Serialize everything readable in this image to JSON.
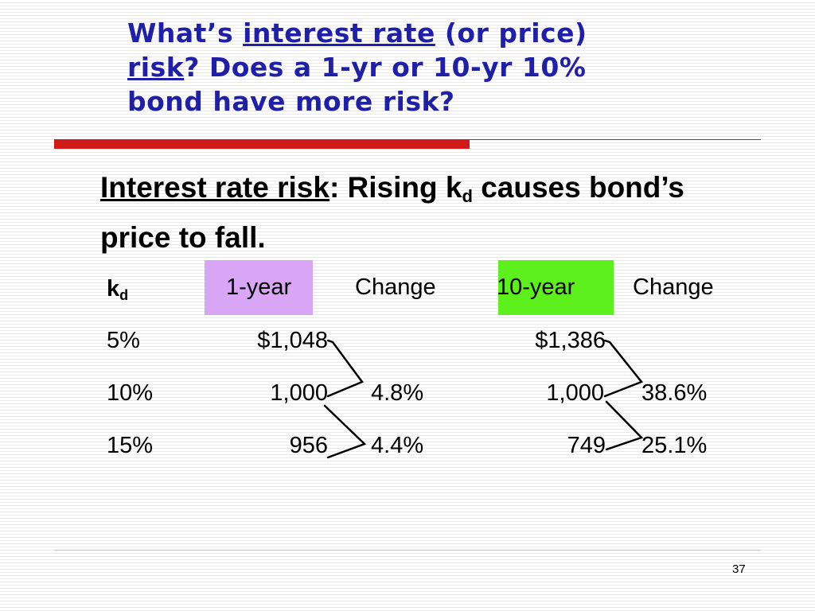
{
  "title": {
    "part1": "What’s ",
    "underlined1": "interest rate",
    "part2": " (or price)",
    "underlined2": "risk",
    "part3": "?  Does a 1-yr or 10-yr 10%",
    "part4": "bond have more risk?"
  },
  "heading": {
    "term": "Interest rate risk",
    "colon": ":",
    "text_before_sub": "  Rising k",
    "sub": "d",
    "text_after_sub": " causes bond’s",
    "line2": "price to fall."
  },
  "table": {
    "headers": {
      "kd_main": "k",
      "kd_sub": "d",
      "one_year": "1-year",
      "change1": "Change",
      "ten_year": "10-year",
      "change2": "Change"
    },
    "rows": [
      {
        "kd": "5%",
        "one_year": "$1,048",
        "change1": "",
        "ten_year": "$1,386",
        "change2": ""
      },
      {
        "kd": "10%",
        "one_year": "1,000",
        "change1": "4.8%",
        "ten_year": "1,000",
        "change2": "38.6%"
      },
      {
        "kd": "15%",
        "one_year": "956",
        "change1": "4.4%",
        "ten_year": "749",
        "change2": "25.1%"
      }
    ],
    "highlight_colors": {
      "one_year": "#d9a6f5",
      "ten_year": "#5df01d"
    }
  },
  "colors": {
    "title": "#1f1fa8",
    "accent_bar": "#d11a1a"
  },
  "page_number": "37"
}
